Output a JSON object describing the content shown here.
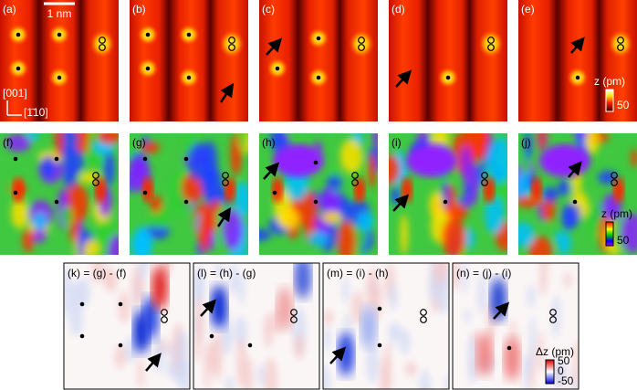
{
  "row1": {
    "labels": [
      "(a)",
      "(b)",
      "(c)",
      "(d)",
      "(e)"
    ],
    "scale_bar": "1 nm",
    "axis_up": "[001]",
    "axis_right": "[1̄10]",
    "colorbar_title": "z (pm)",
    "colorbar_label": "50"
  },
  "row2": {
    "labels": [
      "(f)",
      "(g)",
      "(h)",
      "(i)",
      "(j)"
    ],
    "colorbar_title": "z (pm)",
    "colorbar_label": "50"
  },
  "row3": {
    "labels": [
      "(k) = (g) - (f)",
      "(l) = (h) - (g)",
      "(m) = (i) - (h)",
      "(n) = (j) - (i)"
    ],
    "colorbar_title": "Δz (pm)",
    "colorbar_labels": [
      "50",
      "0",
      "-50"
    ]
  }
}
